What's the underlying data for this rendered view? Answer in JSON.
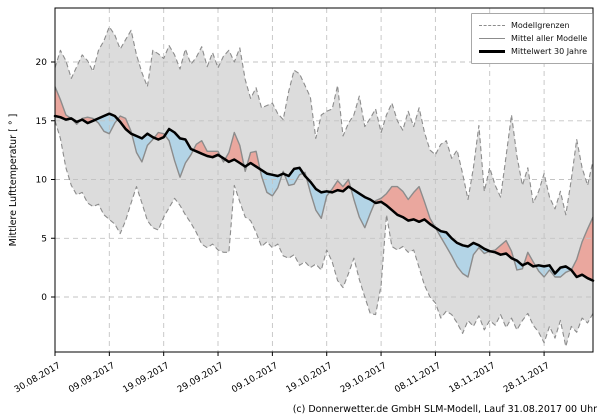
{
  "page": {
    "footer": "(c) Donnerwetter.de GmbH SLM-Modell, Lauf 31.08.2017 00 Uhr"
  },
  "chart_data": {
    "type": "line",
    "title": "",
    "xlabel": "",
    "ylabel": "Mittlere Lufttemperatur [ ° ]",
    "ylim": [
      -4.7,
      24.6
    ],
    "yticks": [
      0,
      5,
      10,
      15,
      20
    ],
    "grid": true,
    "x_tick_days": [
      0,
      10,
      20,
      30,
      40,
      50,
      60,
      70,
      80,
      90
    ],
    "x_tick_labels": [
      "30.08.2017",
      "09.09.2017",
      "19.09.2017",
      "29.09.2017",
      "09.10.2017",
      "19.10.2017",
      "29.10.2017",
      "08.11.2017",
      "18.11.2017",
      "28.11.2017"
    ],
    "x_total_days": 99,
    "legend": {
      "position": "top-right",
      "items": [
        {
          "label": "Modellgrenzen",
          "style": "dashed-gray"
        },
        {
          "label": "Mittel aller Modelle",
          "style": "solid-gray"
        },
        {
          "label": "Mittelwert 30 Jahre",
          "style": "thick-black"
        }
      ]
    },
    "colors": {
      "band_fill": "#dcdcdc",
      "band_edge": "#8c8c8c",
      "above_fill": "#eaa79e",
      "below_fill": "#b3d4e6",
      "model_mean_line": "#8c8c8c",
      "mean30_line": "#000000",
      "grid": "#c3c3c3",
      "frame": "#000000"
    },
    "series": [
      {
        "key": "upper",
        "name": "Modellgrenzen (Maximum)",
        "values": [
          19.5,
          21.0,
          20.1,
          18.6,
          19.6,
          20.6,
          20.1,
          19.2,
          21.0,
          21.8,
          23.0,
          22.3,
          21.1,
          21.9,
          22.7,
          20.6,
          19.1,
          17.9,
          21.0,
          20.7,
          20.3,
          21.4,
          20.6,
          19.4,
          21.1,
          19.8,
          20.4,
          21.3,
          19.6,
          20.8,
          19.5,
          20.5,
          21.0,
          20.0,
          21.2,
          18.5,
          16.9,
          17.8,
          16.1,
          16.3,
          16.5,
          15.6,
          15.1,
          17.5,
          19.3,
          19.0,
          18.0,
          17.0,
          13.5,
          15.5,
          15.8,
          16.0,
          18.0,
          13.7,
          14.8,
          15.5,
          17.1,
          14.5,
          15.2,
          16.0,
          14.0,
          15.5,
          16.5,
          15.0,
          14.2,
          15.8,
          14.5,
          16.1,
          14.0,
          12.5,
          12.1,
          13.0,
          13.3,
          11.8,
          12.5,
          10.5,
          8.3,
          11.0,
          14.6,
          9.0,
          11.0,
          9.5,
          8.5,
          12.0,
          15.5,
          12.0,
          9.5,
          11.0,
          8.0,
          9.0,
          10.5,
          8.5,
          7.5,
          9.0,
          7.0,
          10.0,
          13.4,
          11.0,
          9.5,
          11.6
        ]
      },
      {
        "key": "lower",
        "name": "Modellgrenzen (Minimum)",
        "values": [
          15.0,
          13.5,
          11.0,
          9.5,
          8.7,
          8.9,
          8.0,
          7.7,
          7.9,
          7.0,
          6.6,
          6.2,
          5.4,
          6.5,
          8.0,
          9.4,
          8.0,
          6.5,
          5.9,
          5.7,
          6.8,
          7.6,
          8.4,
          7.8,
          7.0,
          6.3,
          5.5,
          4.5,
          4.2,
          4.5,
          4.0,
          3.8,
          3.8,
          9.5,
          8.1,
          6.8,
          6.5,
          5.5,
          4.3,
          4.7,
          4.2,
          4.5,
          3.5,
          3.3,
          3.6,
          2.7,
          3.0,
          2.5,
          2.8,
          2.3,
          4.0,
          3.0,
          1.4,
          0.8,
          2.0,
          3.3,
          1.5,
          0.0,
          -1.4,
          -1.5,
          1.0,
          7.0,
          4.3,
          4.0,
          4.3,
          3.8,
          4.0,
          2.5,
          1.0,
          0.0,
          -0.5,
          -1.8,
          -1.2,
          -1.5,
          -2.2,
          -3.1,
          -2.0,
          -2.5,
          -1.6,
          -2.8,
          -2.0,
          -2.4,
          -1.5,
          -2.6,
          -1.8,
          -2.8,
          -2.0,
          -1.4,
          -2.4,
          -3.0,
          -3.9,
          -2.5,
          -3.5,
          -2.0,
          -4.2,
          -2.5,
          -3.0,
          -1.8,
          -2.2,
          -1.4
        ]
      },
      {
        "key": "model_mean",
        "name": "Mittel aller Modelle",
        "values": [
          17.9,
          16.8,
          15.5,
          15.2,
          14.7,
          15.2,
          15.3,
          15.2,
          14.8,
          14.1,
          13.9,
          14.8,
          15.4,
          15.2,
          14.1,
          12.3,
          11.5,
          12.9,
          13.4,
          14.0,
          13.9,
          13.3,
          11.6,
          10.2,
          11.4,
          12.1,
          13.0,
          13.3,
          12.4,
          12.4,
          12.4,
          11.5,
          12.3,
          14.0,
          12.9,
          10.7,
          12.3,
          12.4,
          10.3,
          8.9,
          8.6,
          9.3,
          10.7,
          9.5,
          9.6,
          10.4,
          10.6,
          8.9,
          7.4,
          6.7,
          8.6,
          9.2,
          9.9,
          9.4,
          10.0,
          8.3,
          6.8,
          5.9,
          7.1,
          8.2,
          8.4,
          8.8,
          9.4,
          9.4,
          9.0,
          8.3,
          8.9,
          9.4,
          8.1,
          6.7,
          5.9,
          5.1,
          4.3,
          3.5,
          2.6,
          2.0,
          1.7,
          3.6,
          4.2,
          3.7,
          3.9,
          4.0,
          4.4,
          4.8,
          3.9,
          2.3,
          2.4,
          3.8,
          3.0,
          2.2,
          1.7,
          2.3,
          1.7,
          1.7,
          2.1,
          2.3,
          3.2,
          4.7,
          5.8,
          6.8
        ]
      },
      {
        "key": "mean30",
        "name": "Mittelwert 30 Jahre",
        "values": [
          15.4,
          15.3,
          15.1,
          15.2,
          14.9,
          15.1,
          14.8,
          15.0,
          15.2,
          15.4,
          15.6,
          15.4,
          14.9,
          14.3,
          13.9,
          13.7,
          13.5,
          13.9,
          13.6,
          13.4,
          13.6,
          14.3,
          14.0,
          13.5,
          13.4,
          12.6,
          12.4,
          12.2,
          12.0,
          11.9,
          12.1,
          11.8,
          11.5,
          11.7,
          11.4,
          11.1,
          11.4,
          11.1,
          10.8,
          10.5,
          10.4,
          10.3,
          10.5,
          10.3,
          10.9,
          11.0,
          10.3,
          9.8,
          9.2,
          8.9,
          9.0,
          8.9,
          9.1,
          9.0,
          9.4,
          9.1,
          8.8,
          8.5,
          8.3,
          8.0,
          8.1,
          7.8,
          7.4,
          7.0,
          6.8,
          6.5,
          6.6,
          6.4,
          6.6,
          6.2,
          5.9,
          5.6,
          5.5,
          5.0,
          4.6,
          4.4,
          4.3,
          4.6,
          4.4,
          4.1,
          3.9,
          3.8,
          3.6,
          3.7,
          3.3,
          3.1,
          2.7,
          2.9,
          2.6,
          2.7,
          2.6,
          2.7,
          2.0,
          2.5,
          2.6,
          2.3,
          1.7,
          1.9,
          1.6,
          1.4
        ]
      }
    ]
  }
}
